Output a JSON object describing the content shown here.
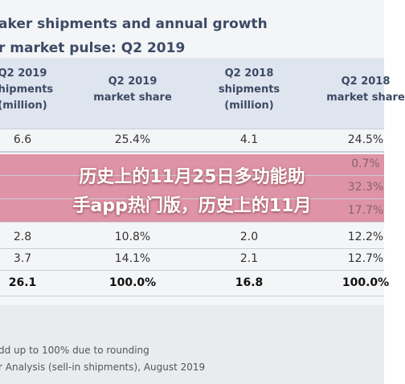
{
  "header": {
    "title_lines": [
      "aker shipments and annual growth",
      "r market pulse: Q2 2019"
    ]
  },
  "table": {
    "columns": [
      [
        "Q2 2019",
        "shipments",
        "(million)"
      ],
      [
        "Q2 2019",
        "market share"
      ],
      [
        "Q2 2018",
        "shipments",
        "(million)"
      ],
      [
        "Q2 2018",
        "market share"
      ]
    ],
    "rows": [
      [
        "6.6",
        "25.4%",
        "4.1",
        "24.5%"
      ],
      [
        "2.8",
        "10.8%",
        "2.0",
        "12.2%"
      ],
      [
        "3.7",
        "14.1%",
        "2.1",
        "12.7%"
      ]
    ],
    "obscured_last_column": [
      "0.7%",
      "32.3%",
      "17.7%"
    ],
    "total": [
      "26.1",
      "100.0%",
      "16.8",
      "100.0%"
    ]
  },
  "overlay": {
    "lines": [
      "历史上的11月25日多功能助",
      "手app热门版，历史上的11月"
    ]
  },
  "footer": {
    "lines": [
      "dd up to 100% due to rounding",
      "r Analysis (sell-in shipments), August 2019"
    ]
  }
}
